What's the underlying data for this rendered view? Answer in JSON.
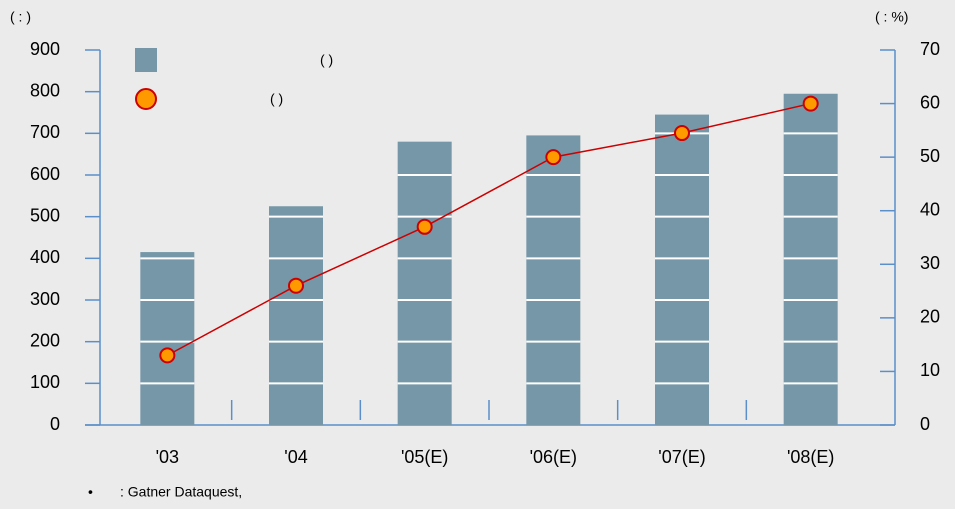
{
  "chart_data": {
    "type": "bar_line",
    "left_unit_label": "(   :      )",
    "right_unit_label": "(   : %)",
    "categories": [
      "'03",
      "'04",
      "'05(E)",
      "'06(E)",
      "'07(E)",
      "'08(E)"
    ],
    "series": [
      {
        "name": "(  )",
        "color": "#7597a8",
        "type": "bar",
        "values": [
          415,
          525,
          680,
          695,
          745,
          795
        ]
      },
      {
        "name": "(  )",
        "color": "#cc0000",
        "marker_color": "#ff9900",
        "type": "line",
        "axis": "y2",
        "values": [
          13,
          26,
          37,
          50,
          54.5,
          60
        ]
      }
    ],
    "ylim": [
      0,
      900
    ],
    "yticks": [
      0,
      100,
      200,
      300,
      400,
      500,
      600,
      700,
      800,
      900
    ],
    "y2lim": [
      0,
      70
    ],
    "y2ticks": [
      0,
      10,
      20,
      30,
      40,
      50,
      60,
      70
    ],
    "grid": true,
    "source_bullet": "•",
    "source": ": Gatner Dataquest,"
  }
}
